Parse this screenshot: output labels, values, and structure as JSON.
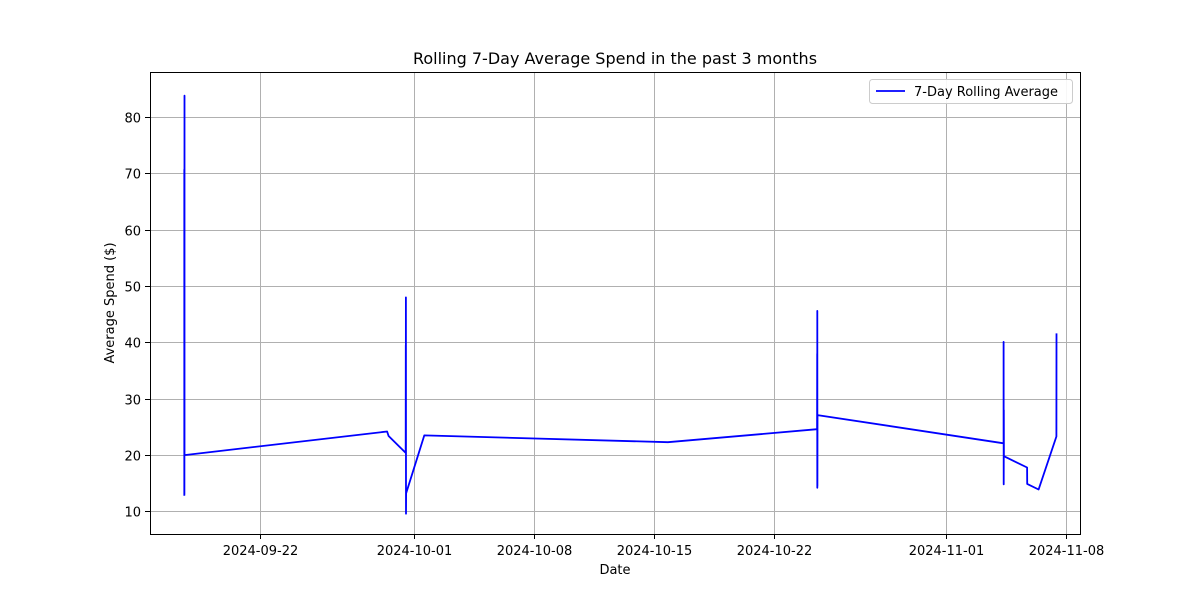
{
  "chart_data": {
    "type": "line",
    "title": "Rolling 7-Day Average Spend in the past 3 months",
    "xlabel": "Date",
    "ylabel": "Average Spend ($)",
    "grid": true,
    "legend_position": "top-right",
    "x_axis": {
      "type": "date",
      "range": [
        "2024-09-15T14:00",
        "2024-11-08T20:00"
      ],
      "ticks": [
        "2024-09-22",
        "2024-10-01",
        "2024-10-08",
        "2024-10-15",
        "2024-10-22",
        "2024-11-01",
        "2024-11-08"
      ]
    },
    "y_axis": {
      "range": [
        6,
        88
      ],
      "ticks": [
        10,
        20,
        30,
        40,
        50,
        60,
        70,
        80
      ]
    },
    "series": [
      {
        "name": "7-Day Rolling Average",
        "color": "#0000ff",
        "points": [
          {
            "x": "2024-09-17T14:00",
            "y": 12.8
          },
          {
            "x": "2024-09-17T14:05",
            "y": 70.7
          },
          {
            "x": "2024-09-17T14:10",
            "y": 13.0
          },
          {
            "x": "2024-09-17T14:15",
            "y": 83.8
          },
          {
            "x": "2024-09-17T14:20",
            "y": 20.0
          },
          {
            "x": "2024-09-29T10:00",
            "y": 24.2
          },
          {
            "x": "2024-09-29T12:00",
            "y": 23.4
          },
          {
            "x": "2024-09-30T12:00",
            "y": 20.4
          },
          {
            "x": "2024-09-30T12:05",
            "y": 39.5
          },
          {
            "x": "2024-09-30T12:10",
            "y": 20.4
          },
          {
            "x": "2024-09-30T12:15",
            "y": 48.0
          },
          {
            "x": "2024-09-30T12:20",
            "y": 9.6
          },
          {
            "x": "2024-09-30T12:30",
            "y": 13.2
          },
          {
            "x": "2024-10-01T14:00",
            "y": 23.5
          },
          {
            "x": "2024-10-15T19:00",
            "y": 22.3
          },
          {
            "x": "2024-10-24T12:00",
            "y": 24.6
          },
          {
            "x": "2024-10-24T12:05",
            "y": 38.0
          },
          {
            "x": "2024-10-24T12:10",
            "y": 14.2
          },
          {
            "x": "2024-10-24T12:15",
            "y": 45.6
          },
          {
            "x": "2024-10-24T12:20",
            "y": 14.5
          },
          {
            "x": "2024-10-24T12:30",
            "y": 27.1
          },
          {
            "x": "2024-11-04T09:00",
            "y": 22.1
          },
          {
            "x": "2024-11-04T09:05",
            "y": 40.1
          },
          {
            "x": "2024-11-04T09:10",
            "y": 14.8
          },
          {
            "x": "2024-11-04T09:15",
            "y": 28.0
          },
          {
            "x": "2024-11-04T09:30",
            "y": 19.8
          },
          {
            "x": "2024-11-05T18:00",
            "y": 17.8
          },
          {
            "x": "2024-11-05T18:05",
            "y": 14.9
          },
          {
            "x": "2024-11-06T10:00",
            "y": 13.9
          },
          {
            "x": "2024-11-07T11:00",
            "y": 23.3
          },
          {
            "x": "2024-11-07T11:05",
            "y": 41.6
          }
        ]
      }
    ]
  }
}
